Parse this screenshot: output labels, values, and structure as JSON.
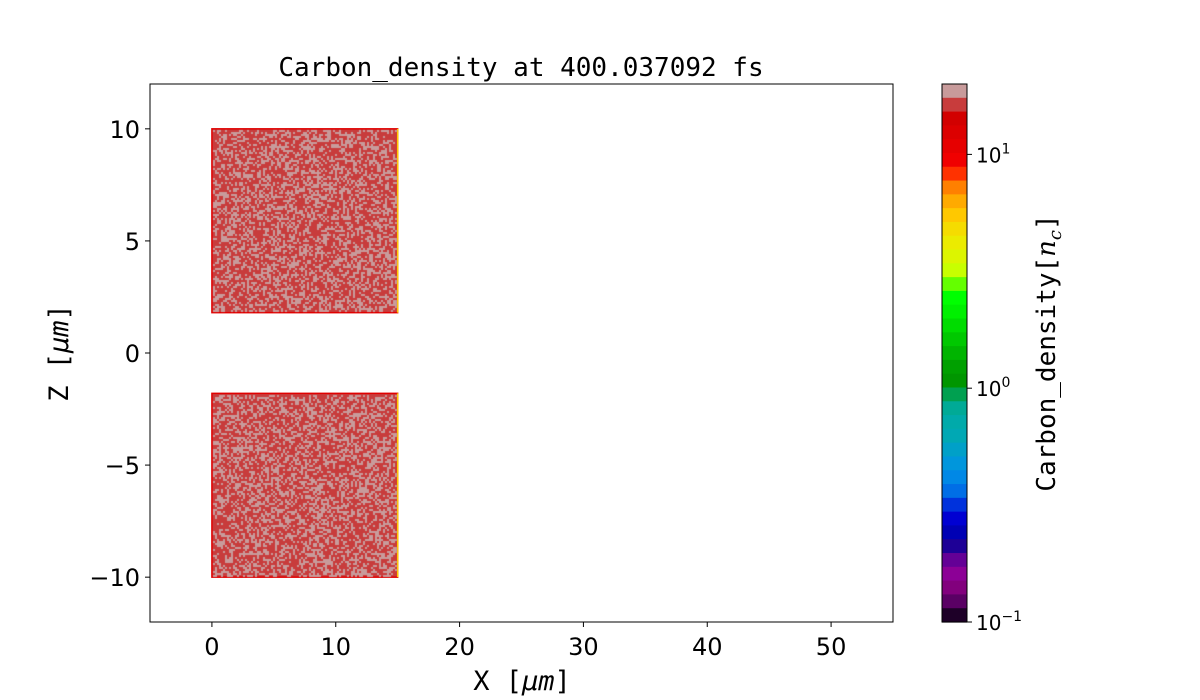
{
  "chart_data": {
    "type": "heatmap",
    "title": "Carbon_density at 400.037092 fs",
    "xlabel": "X  [μm]",
    "xlabel_text": "X  [",
    "xlabel_unit": "μm",
    "ylabel_text": "Z  [",
    "ylabel_unit": "μm",
    "xlim": [
      -5,
      55
    ],
    "ylim": [
      -12,
      12
    ],
    "xticks": [
      0,
      10,
      20,
      30,
      40,
      50
    ],
    "xtick_labels": [
      "0",
      "10",
      "20",
      "30",
      "40",
      "50"
    ],
    "yticks": [
      -10,
      -5,
      0,
      5,
      10
    ],
    "ytick_labels": [
      "−10",
      "−5",
      "0",
      "5",
      "10"
    ],
    "grid": false,
    "regions": [
      {
        "x": [
          0,
          15
        ],
        "z": [
          1.8,
          10
        ],
        "density_values": [
          10,
          20
        ],
        "edge_density": 12
      },
      {
        "x": [
          0,
          15
        ],
        "z": [
          -10,
          -1.8
        ],
        "density_values": [
          10,
          20
        ],
        "edge_density": 12
      }
    ],
    "colorbar": {
      "label_text": "Carbon_density[",
      "label_sym": "n",
      "label_sub": "c",
      "scale": "log",
      "range": [
        0.1,
        20
      ],
      "ticks": [
        0.1,
        1,
        10
      ],
      "tick_bases": [
        "10",
        "10",
        "10"
      ],
      "tick_exps": [
        "−1",
        "0",
        "1"
      ],
      "colors_top_to_bottom": [
        "#c89b9b",
        "#c83c3c",
        "#d20000",
        "#dc0000",
        "#e60000",
        "#f00000",
        "#ff3200",
        "#ff8000",
        "#ffaa00",
        "#ffc800",
        "#f5dc00",
        "#ebeb00",
        "#dcf500",
        "#c8ff00",
        "#64ff00",
        "#00ff00",
        "#00f000",
        "#00dc00",
        "#00c800",
        "#00b400",
        "#00a000",
        "#009600",
        "#00a050",
        "#00aa96",
        "#00aaaa",
        "#00a8b4",
        "#00a0c8",
        "#0096dc",
        "#0088e6",
        "#006ee6",
        "#0032dc",
        "#0000d2",
        "#0000b4",
        "#1e0096",
        "#640096",
        "#8c0096",
        "#82007d",
        "#5a0064",
        "#1e0028"
      ]
    }
  }
}
